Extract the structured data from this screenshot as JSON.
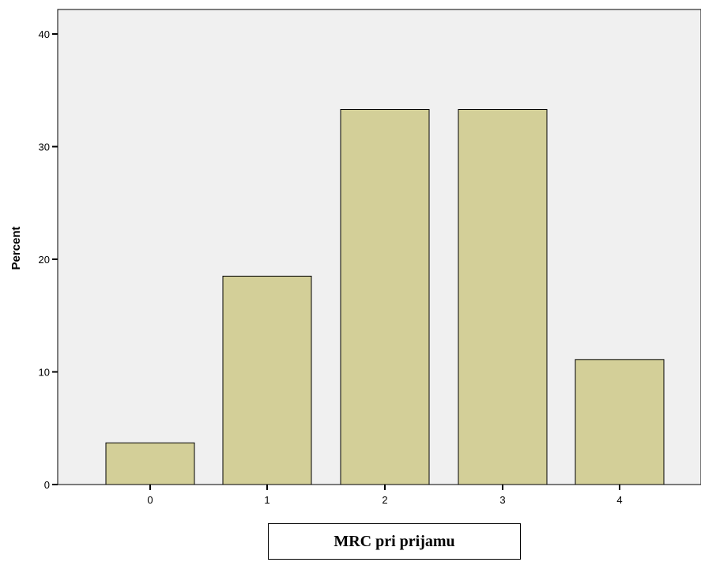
{
  "chart_data": {
    "type": "bar",
    "categories": [
      "0",
      "1",
      "2",
      "3",
      "4"
    ],
    "values": [
      3.7,
      18.5,
      33.3,
      33.3,
      11.1
    ],
    "ylabel": "Percent",
    "xlabel": "MRC pri prijamu",
    "ylim": [
      0,
      40
    ],
    "yticks": [
      "0",
      "10",
      "20",
      "30",
      "40"
    ],
    "grid": false,
    "legend": "none",
    "colors": {
      "bar_fill": "#d3cf98",
      "bar_stroke": "#000000",
      "plot_background": "#f0f0f0"
    }
  }
}
